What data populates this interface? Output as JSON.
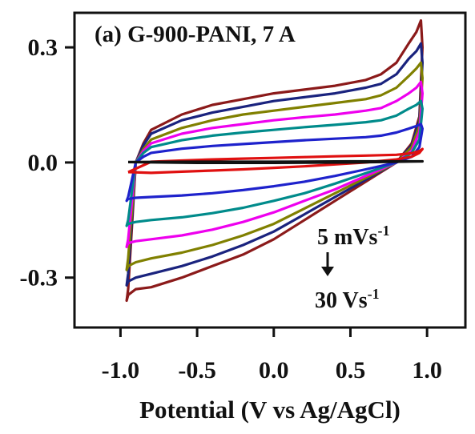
{
  "chart_data": {
    "type": "line",
    "title": "(a) G-900-PANI, 7 A",
    "xlabel": "Potential (V vs Ag/AgCl)",
    "ylabel": "",
    "xlim": [
      -1.3,
      1.25
    ],
    "ylim": [
      -0.43,
      0.39
    ],
    "xticks": [
      -1.0,
      -0.5,
      0.0,
      0.5,
      1.0
    ],
    "xtick_labels": [
      "-1.0",
      "-0.5",
      "0.0",
      "0.5",
      "1.0"
    ],
    "yticks": [
      -0.3,
      0.0,
      0.3
    ],
    "ytick_labels": [
      "-0.3",
      "0.0",
      "0.3"
    ],
    "grid": false,
    "legend": "none",
    "annotation": {
      "from_text": "5 mVs",
      "from_sup": "-1",
      "to_text": "30 Vs",
      "to_sup": "-1",
      "arrow": "down"
    },
    "series": [
      {
        "color": "#8B1A1A",
        "x": [
          -0.95,
          -0.9,
          -0.85,
          -0.8,
          -0.6,
          -0.4,
          -0.2,
          0.0,
          0.2,
          0.4,
          0.6,
          0.7,
          0.8,
          0.88,
          0.93,
          0.96,
          0.97,
          0.95,
          0.9,
          0.8,
          0.6,
          0.4,
          0.2,
          0.0,
          -0.2,
          -0.4,
          -0.6,
          -0.8,
          -0.9,
          -0.95,
          -0.96,
          -0.95
        ],
        "y": [
          -0.33,
          0.0,
          0.05,
          0.085,
          0.125,
          0.15,
          0.165,
          0.18,
          0.19,
          0.2,
          0.215,
          0.23,
          0.26,
          0.31,
          0.34,
          0.37,
          0.3,
          0.12,
          0.05,
          0.0,
          -0.05,
          -0.1,
          -0.15,
          -0.2,
          -0.24,
          -0.27,
          -0.3,
          -0.325,
          -0.33,
          -0.345,
          -0.36,
          -0.33
        ]
      },
      {
        "color": "#1A237E",
        "x": [
          -0.95,
          -0.9,
          -0.85,
          -0.8,
          -0.6,
          -0.4,
          -0.2,
          0.0,
          0.2,
          0.4,
          0.6,
          0.7,
          0.8,
          0.88,
          0.93,
          0.96,
          0.97,
          0.95,
          0.9,
          0.8,
          0.6,
          0.4,
          0.2,
          0.0,
          -0.2,
          -0.4,
          -0.6,
          -0.8,
          -0.9,
          -0.95,
          -0.96,
          -0.95
        ],
        "y": [
          -0.29,
          0.0,
          0.045,
          0.075,
          0.11,
          0.13,
          0.145,
          0.16,
          0.17,
          0.18,
          0.195,
          0.205,
          0.23,
          0.27,
          0.29,
          0.31,
          0.26,
          0.11,
          0.045,
          0.0,
          -0.045,
          -0.09,
          -0.135,
          -0.18,
          -0.215,
          -0.245,
          -0.27,
          -0.29,
          -0.3,
          -0.31,
          -0.32,
          -0.29
        ]
      },
      {
        "color": "#808000",
        "x": [
          -0.95,
          -0.9,
          -0.85,
          -0.8,
          -0.6,
          -0.4,
          -0.2,
          0.0,
          0.2,
          0.4,
          0.6,
          0.7,
          0.8,
          0.88,
          0.93,
          0.96,
          0.97,
          0.95,
          0.9,
          0.8,
          0.6,
          0.4,
          0.2,
          0.0,
          -0.2,
          -0.4,
          -0.6,
          -0.8,
          -0.9,
          -0.95,
          -0.96,
          -0.95
        ],
        "y": [
          -0.25,
          0.0,
          0.035,
          0.06,
          0.09,
          0.11,
          0.125,
          0.135,
          0.145,
          0.155,
          0.165,
          0.175,
          0.195,
          0.225,
          0.245,
          0.26,
          0.22,
          0.095,
          0.04,
          0.0,
          -0.04,
          -0.08,
          -0.12,
          -0.16,
          -0.19,
          -0.215,
          -0.235,
          -0.25,
          -0.26,
          -0.27,
          -0.28,
          -0.25
        ]
      },
      {
        "color": "#EE00EE",
        "x": [
          -0.95,
          -0.9,
          -0.85,
          -0.8,
          -0.6,
          -0.4,
          -0.2,
          0.0,
          0.2,
          0.4,
          0.6,
          0.7,
          0.8,
          0.88,
          0.93,
          0.96,
          0.97,
          0.95,
          0.9,
          0.8,
          0.6,
          0.4,
          0.2,
          0.0,
          -0.2,
          -0.4,
          -0.6,
          -0.8,
          -0.9,
          -0.95,
          -0.96,
          -0.95
        ],
        "y": [
          -0.2,
          0.0,
          0.03,
          0.05,
          0.075,
          0.09,
          0.1,
          0.11,
          0.118,
          0.125,
          0.135,
          0.142,
          0.16,
          0.18,
          0.195,
          0.21,
          0.18,
          0.08,
          0.03,
          0.0,
          -0.035,
          -0.07,
          -0.1,
          -0.13,
          -0.155,
          -0.175,
          -0.19,
          -0.2,
          -0.205,
          -0.21,
          -0.22,
          -0.2
        ]
      },
      {
        "color": "#008B8B",
        "x": [
          -0.95,
          -0.9,
          -0.85,
          -0.8,
          -0.6,
          -0.4,
          -0.2,
          0.0,
          0.2,
          0.4,
          0.6,
          0.7,
          0.8,
          0.88,
          0.93,
          0.96,
          0.97,
          0.95,
          0.9,
          0.8,
          0.6,
          0.4,
          0.2,
          0.0,
          -0.2,
          -0.4,
          -0.6,
          -0.8,
          -0.9,
          -0.95,
          -0.96,
          -0.95
        ],
        "y": [
          -0.15,
          0.0,
          0.025,
          0.04,
          0.058,
          0.07,
          0.078,
          0.085,
          0.092,
          0.098,
          0.105,
          0.11,
          0.122,
          0.14,
          0.15,
          0.16,
          0.14,
          0.06,
          0.025,
          0.0,
          -0.028,
          -0.055,
          -0.08,
          -0.1,
          -0.118,
          -0.132,
          -0.143,
          -0.15,
          -0.155,
          -0.16,
          -0.165,
          -0.15
        ]
      },
      {
        "color": "#1E22CC",
        "x": [
          -0.95,
          -0.9,
          -0.85,
          -0.8,
          -0.6,
          -0.4,
          -0.2,
          0.0,
          0.2,
          0.4,
          0.6,
          0.7,
          0.8,
          0.88,
          0.93,
          0.96,
          0.97,
          0.95,
          0.9,
          0.8,
          0.6,
          0.4,
          0.2,
          0.0,
          -0.2,
          -0.4,
          -0.6,
          -0.8,
          -0.9,
          -0.95,
          -0.96,
          -0.95
        ],
        "y": [
          -0.09,
          0.0,
          0.015,
          0.025,
          0.036,
          0.043,
          0.048,
          0.053,
          0.058,
          0.062,
          0.066,
          0.07,
          0.078,
          0.088,
          0.095,
          0.1,
          0.088,
          0.04,
          0.015,
          0.0,
          -0.018,
          -0.035,
          -0.05,
          -0.062,
          -0.072,
          -0.08,
          -0.086,
          -0.09,
          -0.092,
          -0.095,
          -0.1,
          -0.09
        ]
      },
      {
        "color": "#E01010",
        "x": [
          -0.95,
          -0.8,
          -0.6,
          -0.4,
          -0.2,
          0.0,
          0.2,
          0.4,
          0.6,
          0.8,
          0.9,
          0.95,
          0.97,
          0.95,
          0.9,
          0.8,
          0.6,
          0.4,
          0.2,
          0.0,
          -0.2,
          -0.4,
          -0.6,
          -0.8,
          -0.95
        ],
        "y": [
          -0.025,
          0.002,
          0.005,
          0.008,
          0.01,
          0.012,
          0.014,
          0.016,
          0.018,
          0.02,
          0.024,
          0.03,
          0.035,
          0.025,
          0.015,
          0.008,
          0.0,
          -0.005,
          -0.01,
          -0.014,
          -0.018,
          -0.021,
          -0.024,
          -0.027,
          -0.025
        ]
      },
      {
        "color": "#111111",
        "x": [
          -0.95,
          -0.5,
          0.0,
          0.5,
          0.97,
          0.5,
          0.0,
          -0.5,
          -0.95
        ],
        "y": [
          0.001,
          0.002,
          0.002,
          0.003,
          0.003,
          0.0,
          -0.001,
          -0.001,
          0.001
        ]
      }
    ]
  }
}
